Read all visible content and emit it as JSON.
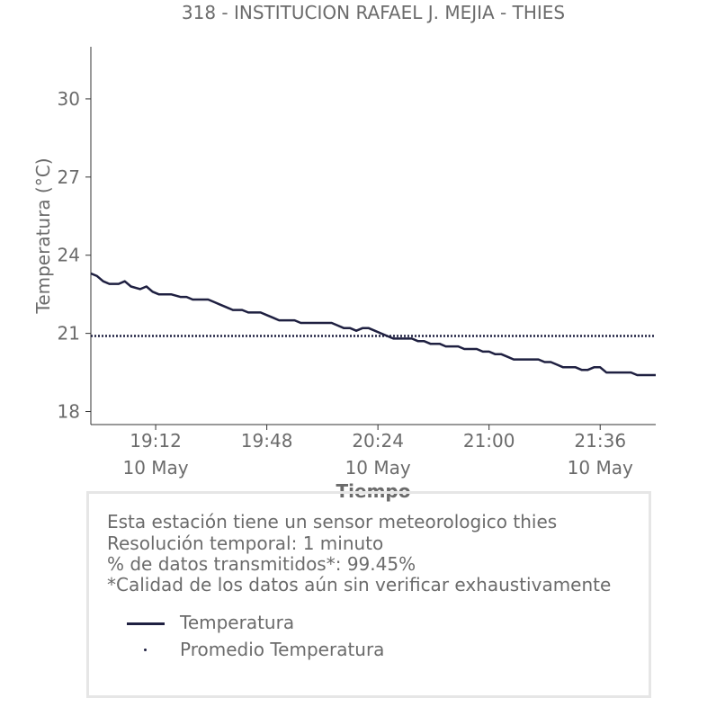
{
  "chart_data": {
    "type": "line",
    "title": "318 - INSTITUCION RAFAEL J. MEJIA - THIES",
    "xlabel": "Tiempo",
    "ylabel": "Temperatura (°C)",
    "x_ticks": [
      {
        "time": "19:12",
        "date": "10 May"
      },
      {
        "time": "19:48",
        "date": ""
      },
      {
        "time": "20:24",
        "date": "10 May"
      },
      {
        "time": "21:00",
        "date": ""
      },
      {
        "time": "21:36",
        "date": "10 May"
      }
    ],
    "y_ticks": [
      "18",
      "21",
      "24",
      "27",
      "30"
    ],
    "xlim": [
      "18:51",
      "21:54"
    ],
    "ylim": [
      17.5,
      32
    ],
    "grid": false,
    "series": [
      {
        "name": "Temperatura",
        "style": "line",
        "color": "#1f2041",
        "points": [
          [
            "18:51",
            23.3
          ],
          [
            "18:53",
            23.2
          ],
          [
            "18:55",
            23.0
          ],
          [
            "18:57",
            22.9
          ],
          [
            "19:00",
            22.9
          ],
          [
            "19:02",
            23.0
          ],
          [
            "19:04",
            22.8
          ],
          [
            "19:07",
            22.7
          ],
          [
            "19:09",
            22.8
          ],
          [
            "19:11",
            22.6
          ],
          [
            "19:13",
            22.5
          ],
          [
            "19:15",
            22.5
          ],
          [
            "19:17",
            22.5
          ],
          [
            "19:20",
            22.4
          ],
          [
            "19:22",
            22.4
          ],
          [
            "19:24",
            22.3
          ],
          [
            "19:27",
            22.3
          ],
          [
            "19:29",
            22.3
          ],
          [
            "19:31",
            22.2
          ],
          [
            "19:33",
            22.1
          ],
          [
            "19:35",
            22.0
          ],
          [
            "19:37",
            21.9
          ],
          [
            "19:40",
            21.9
          ],
          [
            "19:42",
            21.8
          ],
          [
            "19:44",
            21.8
          ],
          [
            "19:46",
            21.8
          ],
          [
            "19:48",
            21.7
          ],
          [
            "19:50",
            21.6
          ],
          [
            "19:52",
            21.5
          ],
          [
            "19:55",
            21.5
          ],
          [
            "19:57",
            21.5
          ],
          [
            "19:59",
            21.4
          ],
          [
            "20:01",
            21.4
          ],
          [
            "20:03",
            21.4
          ],
          [
            "20:05",
            21.4
          ],
          [
            "20:07",
            21.4
          ],
          [
            "20:09",
            21.4
          ],
          [
            "20:11",
            21.3
          ],
          [
            "20:13",
            21.2
          ],
          [
            "20:15",
            21.2
          ],
          [
            "20:17",
            21.1
          ],
          [
            "20:19",
            21.2
          ],
          [
            "20:21",
            21.2
          ],
          [
            "20:23",
            21.1
          ],
          [
            "20:25",
            21.0
          ],
          [
            "20:27",
            20.9
          ],
          [
            "20:29",
            20.8
          ],
          [
            "20:31",
            20.8
          ],
          [
            "20:33",
            20.8
          ],
          [
            "20:35",
            20.8
          ],
          [
            "20:37",
            20.7
          ],
          [
            "20:39",
            20.7
          ],
          [
            "20:41",
            20.6
          ],
          [
            "20:44",
            20.6
          ],
          [
            "20:46",
            20.5
          ],
          [
            "20:48",
            20.5
          ],
          [
            "20:50",
            20.5
          ],
          [
            "20:52",
            20.4
          ],
          [
            "20:54",
            20.4
          ],
          [
            "20:56",
            20.4
          ],
          [
            "20:58",
            20.3
          ],
          [
            "21:00",
            20.3
          ],
          [
            "21:02",
            20.2
          ],
          [
            "21:04",
            20.2
          ],
          [
            "21:06",
            20.1
          ],
          [
            "21:08",
            20.0
          ],
          [
            "21:10",
            20.0
          ],
          [
            "21:12",
            20.0
          ],
          [
            "21:14",
            20.0
          ],
          [
            "21:16",
            20.0
          ],
          [
            "21:18",
            19.9
          ],
          [
            "21:20",
            19.9
          ],
          [
            "21:22",
            19.8
          ],
          [
            "21:24",
            19.7
          ],
          [
            "21:26",
            19.7
          ],
          [
            "21:28",
            19.7
          ],
          [
            "21:30",
            19.6
          ],
          [
            "21:32",
            19.6
          ],
          [
            "21:34",
            19.7
          ],
          [
            "21:36",
            19.7
          ],
          [
            "21:38",
            19.5
          ],
          [
            "21:40",
            19.5
          ],
          [
            "21:42",
            19.5
          ],
          [
            "21:44",
            19.5
          ],
          [
            "21:46",
            19.5
          ],
          [
            "21:48",
            19.4
          ],
          [
            "21:50",
            19.4
          ],
          [
            "21:52",
            19.4
          ],
          [
            "21:54",
            19.4
          ]
        ]
      },
      {
        "name": "Promedio Temperatura",
        "style": "dotted",
        "color": "#1f2041",
        "value": 20.9
      }
    ]
  },
  "info": {
    "lines": [
      "Esta estación tiene un sensor meteorologico thies",
      "Resolución temporal: 1 minuto",
      "% de datos transmitidos*: 99.45%",
      "*Calidad de los datos aún sin verificar exhaustivamente"
    ],
    "legend": [
      {
        "label": "Temperatura",
        "symbol": "line"
      },
      {
        "label": "Promedio Temperatura",
        "symbol": "dot"
      }
    ]
  }
}
